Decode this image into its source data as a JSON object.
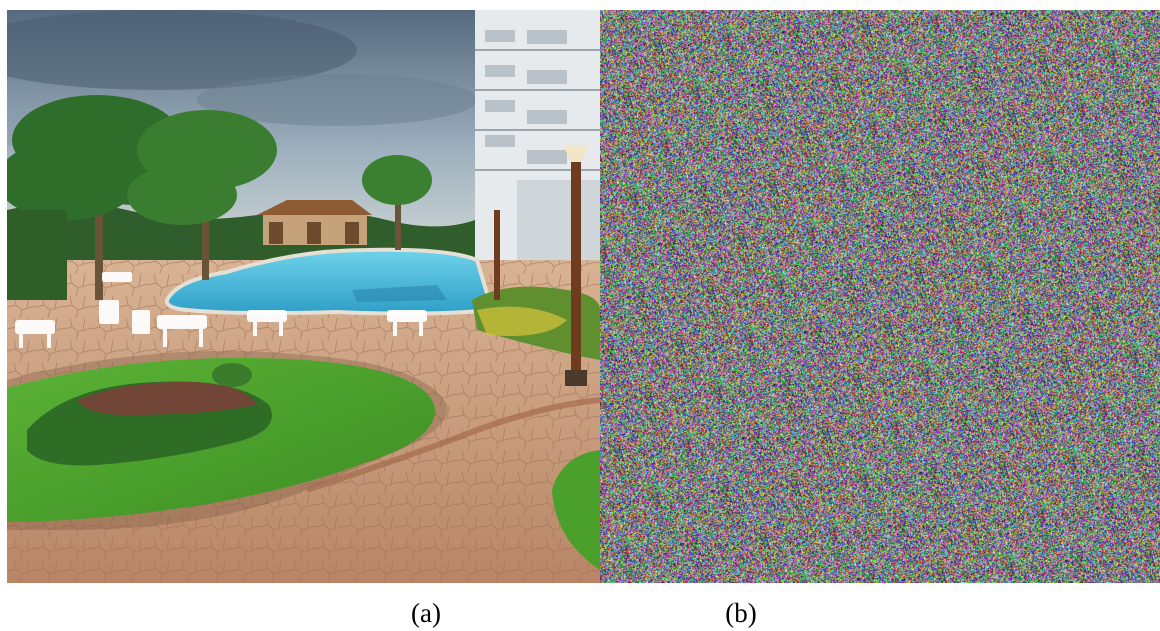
{
  "panels": [
    {
      "id": "a",
      "caption": "(a)",
      "content": "photo"
    },
    {
      "id": "b",
      "caption": "(b)",
      "content": "noise"
    }
  ],
  "colors": {
    "sky_top": "#5b6d80",
    "sky_bottom": "#c9d3d8",
    "pool": "#3fb6d8",
    "lawn": "#46a02a",
    "paving": "#c49a7a",
    "palm_green": "#2e6b2a",
    "building": "#e8ecee"
  }
}
